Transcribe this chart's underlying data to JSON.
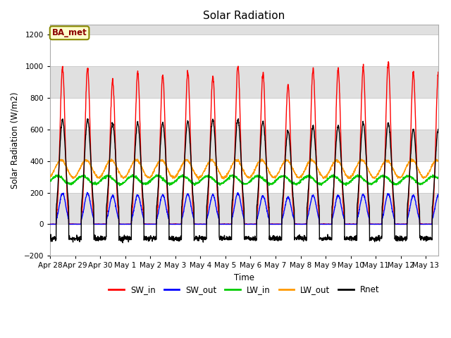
{
  "title": "Solar Radiation",
  "ylabel": "Solar Radiation (W/m2)",
  "xlabel": "Time",
  "ylim": [
    -200,
    1260
  ],
  "yticks": [
    -200,
    0,
    200,
    400,
    600,
    800,
    1000,
    1200
  ],
  "station_label": "BA_met",
  "n_days": 15,
  "pts_per_day": 144,
  "legend_entries": [
    "SW_in",
    "SW_out",
    "LW_in",
    "LW_out",
    "Rnet"
  ],
  "line_colors": [
    "#ff0000",
    "#0000ff",
    "#00cc00",
    "#ff9900",
    "#000000"
  ],
  "SW_in_peaks": [
    990,
    990,
    910,
    960,
    940,
    960,
    940,
    1000,
    960,
    880,
    980,
    980,
    990,
    1020,
    960
  ],
  "SW_out_peaks": [
    195,
    195,
    180,
    185,
    185,
    190,
    185,
    195,
    180,
    170,
    182,
    182,
    188,
    192,
    182
  ],
  "LW_in_base": 280,
  "LW_out_base": 350,
  "Rnet_day_peaks": [
    660,
    660,
    640,
    640,
    640,
    650,
    660,
    660,
    650,
    590,
    620,
    620,
    640,
    640,
    600
  ],
  "Rnet_night": -90,
  "xticklabels": [
    "Apr 28",
    "Apr 29",
    "Apr 30",
    "May 1",
    "May 2",
    "May 3",
    "May 4",
    "May 5",
    "May 6",
    "May 7",
    "May 8",
    "May 9",
    "May 10",
    "May 11",
    "May 12",
    "May 13"
  ],
  "band_colors": [
    "#e8e8e8",
    "#f0f0f0"
  ],
  "figsize": [
    6.4,
    4.8
  ],
  "dpi": 100
}
